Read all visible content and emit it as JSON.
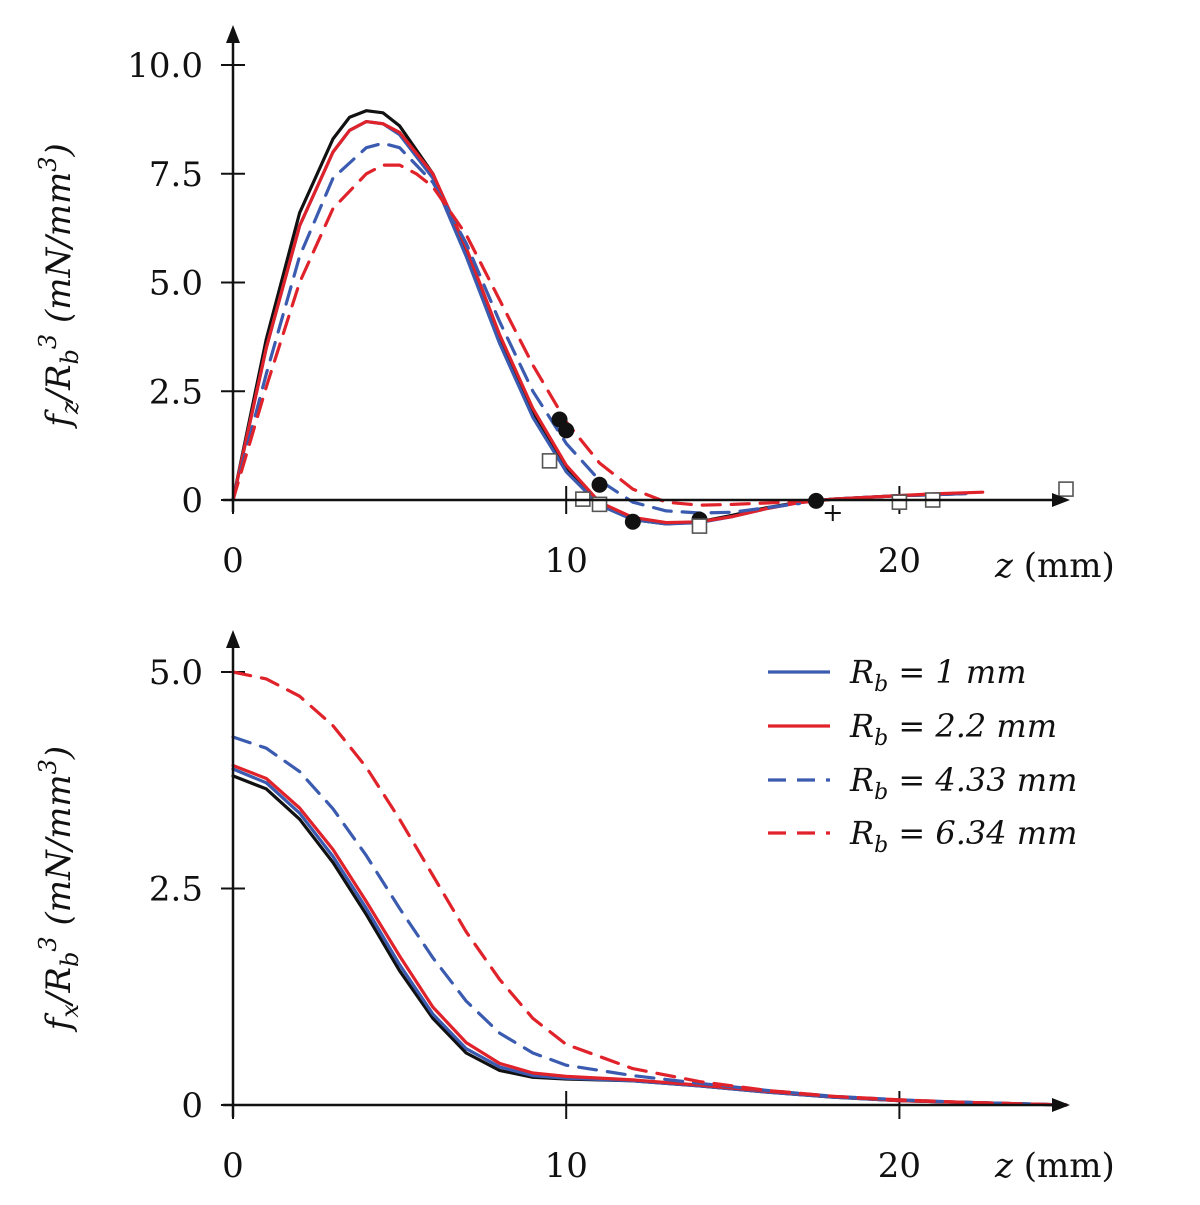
{
  "colors": {
    "axis": "#111111",
    "blue": "#3a5bb0",
    "red": "#e0222a",
    "black": "#111111"
  },
  "chart_data": [
    {
      "type": "line",
      "title": "",
      "xlabel": "z (mm)",
      "ylabel": "fz / Rb³ (mN/mm³)",
      "xlim": [
        0,
        25
      ],
      "ylim": [
        -0.5,
        10.0
      ],
      "x_ticks": [
        0,
        10,
        20
      ],
      "x_tick_labels": [
        "0",
        "10",
        "20"
      ],
      "y_ticks": [
        0,
        2.5,
        5.0,
        7.5,
        10.0
      ],
      "y_tick_labels": [
        "0",
        "2.5",
        "5.0",
        "7.5",
        "10.0"
      ],
      "series": [
        {
          "name": "black solid",
          "color": "#111111",
          "dashed": false,
          "x": [
            0,
            1,
            2,
            3,
            3.5,
            4,
            4.5,
            5,
            6,
            7,
            8,
            9,
            10,
            11,
            12,
            13,
            14,
            15,
            16,
            17,
            18,
            19,
            20,
            21,
            22
          ],
          "y": [
            0,
            3.7,
            6.6,
            8.3,
            8.8,
            8.95,
            8.9,
            8.6,
            7.5,
            5.7,
            3.7,
            2.0,
            0.7,
            -0.1,
            -0.45,
            -0.55,
            -0.5,
            -0.35,
            -0.18,
            -0.05,
            0.02,
            0.06,
            0.1,
            0.12,
            0.15
          ]
        },
        {
          "name": "Rb = 1 mm",
          "color": "#3a5bb0",
          "dashed": false,
          "x": [
            0,
            1,
            2,
            3,
            3.5,
            4,
            4.5,
            5,
            6,
            7,
            8,
            9,
            10,
            11,
            12,
            13,
            14,
            15,
            16,
            17,
            18,
            19,
            20,
            21,
            22
          ],
          "y": [
            0,
            3.5,
            6.3,
            8.0,
            8.5,
            8.7,
            8.65,
            8.4,
            7.4,
            5.6,
            3.6,
            1.9,
            0.65,
            -0.12,
            -0.45,
            -0.55,
            -0.52,
            -0.38,
            -0.2,
            -0.06,
            0.02,
            0.06,
            0.1,
            0.12,
            0.15
          ]
        },
        {
          "name": "Rb = 2.2 mm",
          "color": "#e0222a",
          "dashed": false,
          "x": [
            0,
            1,
            2,
            3,
            3.5,
            4,
            4.5,
            5,
            6,
            7,
            8,
            9,
            10,
            11,
            12,
            13,
            14,
            15,
            16,
            17,
            18,
            19,
            20,
            21,
            22.5
          ],
          "y": [
            0,
            3.5,
            6.3,
            8.0,
            8.5,
            8.7,
            8.65,
            8.45,
            7.5,
            5.8,
            3.8,
            2.1,
            0.8,
            -0.05,
            -0.4,
            -0.52,
            -0.5,
            -0.38,
            -0.2,
            -0.06,
            0.02,
            0.06,
            0.1,
            0.14,
            0.18
          ]
        },
        {
          "name": "Rb = 4.33 mm",
          "color": "#3a5bb0",
          "dashed": true,
          "x": [
            0,
            1,
            2,
            3,
            4,
            4.5,
            5,
            6,
            7,
            8,
            9,
            10,
            11,
            12,
            13,
            14,
            15,
            16,
            17
          ],
          "y": [
            0,
            2.9,
            5.6,
            7.4,
            8.1,
            8.2,
            8.1,
            7.3,
            5.9,
            4.1,
            2.5,
            1.3,
            0.45,
            -0.05,
            -0.25,
            -0.3,
            -0.28,
            -0.18,
            -0.08
          ]
        },
        {
          "name": "Rb = 6.34 mm",
          "color": "#e0222a",
          "dashed": true,
          "x": [
            0,
            1,
            2,
            3,
            4,
            4.5,
            5,
            5.5,
            6,
            7,
            8,
            9,
            10,
            11,
            12,
            13,
            14,
            15,
            16,
            17
          ],
          "y": [
            0,
            2.6,
            5.0,
            6.7,
            7.5,
            7.7,
            7.7,
            7.5,
            7.2,
            6.1,
            4.6,
            3.1,
            1.8,
            0.85,
            0.25,
            -0.05,
            -0.12,
            -0.1,
            -0.07,
            -0.03
          ]
        }
      ],
      "markers": {
        "dots": {
          "x": [
            9.8,
            10.0,
            11.0,
            12.0,
            14.0,
            17.5
          ],
          "y": [
            1.85,
            1.6,
            0.35,
            -0.5,
            -0.45,
            -0.02
          ]
        },
        "squares": {
          "x": [
            9.5,
            10.5,
            11.0,
            14.0,
            20.0,
            21.0,
            25.0
          ],
          "y": [
            0.9,
            0.02,
            -0.1,
            -0.6,
            -0.05,
            0.0,
            0.25
          ]
        },
        "plus": {
          "x": [
            18.0
          ],
          "y": [
            -0.3
          ]
        }
      }
    },
    {
      "type": "line",
      "title": "",
      "xlabel": "z (mm)",
      "ylabel": "fx / Rb³ (mN/mm³)",
      "xlim": [
        0,
        25
      ],
      "ylim": [
        0,
        5.0
      ],
      "x_ticks": [
        0,
        10,
        20
      ],
      "x_tick_labels": [
        "0",
        "10",
        "20"
      ],
      "y_ticks": [
        0,
        2.5,
        5.0
      ],
      "y_tick_labels": [
        "0",
        "2.5",
        "5.0"
      ],
      "series": [
        {
          "name": "black solid",
          "color": "#111111",
          "dashed": false,
          "x": [
            0,
            1,
            2,
            3,
            4,
            5,
            6,
            7,
            8,
            9,
            10,
            12,
            14,
            16,
            18,
            20,
            22,
            24,
            25
          ],
          "y": [
            3.8,
            3.65,
            3.3,
            2.8,
            2.2,
            1.55,
            1.0,
            0.6,
            0.4,
            0.32,
            0.3,
            0.28,
            0.22,
            0.15,
            0.09,
            0.05,
            0.03,
            0.01,
            0.0
          ]
        },
        {
          "name": "Rb = 1 mm",
          "color": "#3a5bb0",
          "dashed": false,
          "x": [
            0,
            1,
            2,
            3,
            4,
            5,
            6,
            7,
            8,
            9,
            10,
            12,
            14,
            16,
            18,
            20,
            22,
            24,
            25
          ],
          "y": [
            3.88,
            3.72,
            3.37,
            2.87,
            2.27,
            1.62,
            1.05,
            0.65,
            0.44,
            0.34,
            0.31,
            0.28,
            0.22,
            0.15,
            0.09,
            0.05,
            0.03,
            0.01,
            0.0
          ]
        },
        {
          "name": "Rb = 2.2 mm",
          "color": "#e0222a",
          "dashed": false,
          "x": [
            0,
            1,
            2,
            3,
            4,
            5,
            6,
            7,
            8,
            9,
            10,
            12,
            14,
            16,
            18,
            20,
            22,
            24,
            25
          ],
          "y": [
            3.92,
            3.77,
            3.43,
            2.95,
            2.35,
            1.72,
            1.13,
            0.72,
            0.48,
            0.37,
            0.33,
            0.29,
            0.23,
            0.16,
            0.1,
            0.05,
            0.03,
            0.01,
            0.0
          ]
        },
        {
          "name": "Rb = 4.33 mm",
          "color": "#3a5bb0",
          "dashed": true,
          "x": [
            0,
            1,
            2,
            3,
            4,
            5,
            6,
            7,
            8,
            9,
            10,
            12,
            14,
            16,
            18,
            20,
            22,
            24,
            25
          ],
          "y": [
            4.25,
            4.12,
            3.85,
            3.42,
            2.88,
            2.27,
            1.7,
            1.2,
            0.83,
            0.6,
            0.46,
            0.34,
            0.25,
            0.17,
            0.1,
            0.06,
            0.03,
            0.01,
            0.0
          ]
        },
        {
          "name": "Rb = 6.34 mm",
          "color": "#e0222a",
          "dashed": true,
          "x": [
            0,
            1,
            2,
            3,
            4,
            5,
            6,
            7,
            8,
            9,
            10,
            12,
            14,
            16,
            18,
            20,
            22,
            24,
            25
          ],
          "y": [
            5.0,
            4.92,
            4.72,
            4.38,
            3.9,
            3.3,
            2.65,
            2.0,
            1.45,
            1.0,
            0.7,
            0.42,
            0.27,
            0.17,
            0.1,
            0.06,
            0.03,
            0.01,
            0.0
          ]
        }
      ],
      "legend": {
        "position": "top-right",
        "entries": [
          {
            "label": "R_b = 1 mm",
            "sub": "b",
            "prefix": "R",
            "suffix": " = 1 mm",
            "color": "#3a5bb0",
            "dashed": false
          },
          {
            "label": "R_b = 2.2 mm",
            "sub": "b",
            "prefix": "R",
            "suffix": " = 2.2 mm",
            "color": "#e0222a",
            "dashed": false
          },
          {
            "label": "R_b = 4.33 mm",
            "sub": "b",
            "prefix": "R",
            "suffix": " = 4.33 mm",
            "color": "#3a5bb0",
            "dashed": true
          },
          {
            "label": "R_b = 6.34 mm",
            "sub": "b",
            "prefix": "R",
            "suffix": " = 6.34 mm",
            "color": "#e0222a",
            "dashed": true
          }
        ]
      }
    }
  ],
  "labels": {
    "top_ylabel_f": "f",
    "top_ylabel_sub": "z",
    "top_ylabel_rest": "/R",
    "top_ylabel_rb_sub": "b",
    "top_ylabel_exp": "3",
    "top_ylabel_units": " (mN/mm",
    "top_ylabel_units_exp": "3",
    "top_ylabel_close": ")",
    "bottom_ylabel_f": "f",
    "bottom_ylabel_sub": "x",
    "bottom_ylabel_rest": "/R",
    "bottom_ylabel_rb_sub": "b",
    "bottom_ylabel_exp": "3",
    "bottom_ylabel_units": " (mN/mm",
    "bottom_ylabel_units_exp": "3",
    "bottom_ylabel_close": ")",
    "xlabel_z": "z",
    "xlabel_units": " (mm)"
  }
}
